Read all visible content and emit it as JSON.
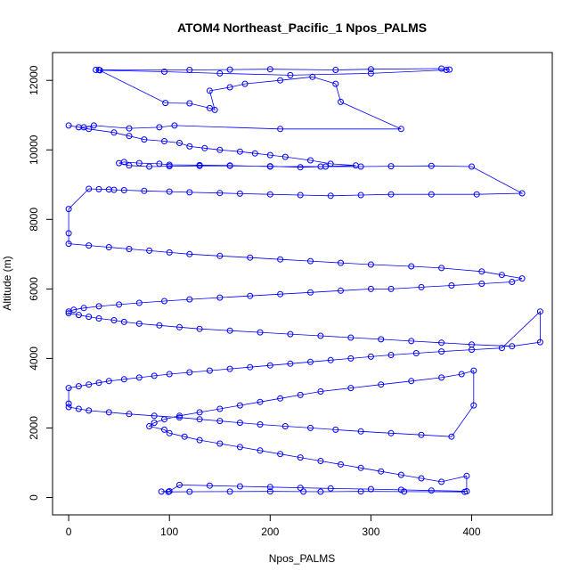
{
  "chart_data": {
    "type": "line",
    "title": "ATOM4 Northeast_Pacific_1 Npos_PALMS",
    "xlabel": "Npos_PALMS",
    "ylabel": "Altitude (m)",
    "xlim": [
      -16,
      480
    ],
    "ylim": [
      -500,
      12800
    ],
    "x_ticks": [
      0,
      100,
      200,
      300,
      400
    ],
    "x_tick_labels": [
      "0",
      "100",
      "200",
      "300",
      "400"
    ],
    "y_ticks": [
      0,
      2000,
      4000,
      6000,
      8000,
      10000,
      12000
    ],
    "y_tick_labels": [
      "0",
      "2000",
      "4000",
      "6000",
      "8000",
      "10000",
      "12000"
    ],
    "grid": false,
    "legend": "none",
    "colors": {
      "series": "#0000ff",
      "axis": "#000000"
    },
    "series": [
      {
        "x": [
          27,
          120,
          160,
          200,
          265,
          300,
          370,
          378,
          375,
          300,
          220,
          150,
          95,
          31,
          30,
          96,
          120,
          140,
          145,
          140,
          160,
          175,
          210,
          242,
          265,
          270,
          330,
          210,
          105,
          90,
          60,
          25,
          15,
          10,
          0,
          20,
          45,
          60,
          75,
          95,
          110,
          120,
          135,
          150,
          170,
          185,
          200,
          215,
          240,
          260,
          285,
          250,
          200,
          160,
          130,
          100,
          90,
          70,
          55,
          50,
          60,
          80,
          100,
          130,
          160,
          200,
          230,
          255,
          290,
          320,
          360,
          400,
          450,
          405,
          360,
          320,
          290,
          260,
          230,
          200,
          170,
          150,
          120,
          100,
          75,
          55,
          45,
          40,
          30,
          20,
          0,
          0,
          0,
          20,
          40,
          60,
          80,
          100,
          120,
          150,
          180,
          210,
          240,
          270,
          300,
          340,
          370,
          410,
          430,
          450,
          440,
          410,
          380,
          350,
          320,
          300,
          270,
          240,
          210,
          180,
          150,
          120,
          95,
          70,
          50,
          30,
          15,
          5,
          0,
          0,
          10,
          20,
          30,
          45,
          55,
          70,
          90,
          110,
          130,
          160,
          190,
          220,
          250,
          280,
          310,
          340,
          370,
          400,
          440,
          468,
          468,
          430,
          400,
          370,
          345,
          320,
          300,
          280,
          260,
          240,
          220,
          200,
          180,
          160,
          140,
          120,
          100,
          85,
          70,
          55,
          40,
          30,
          20,
          10,
          0,
          0,
          0,
          10,
          20,
          40,
          60,
          85,
          110,
          130,
          150,
          170,
          190,
          215,
          240,
          265,
          290,
          320,
          350,
          380,
          402,
          402,
          390,
          370,
          340,
          310,
          280,
          250,
          230,
          210,
          190,
          170,
          150,
          130,
          110,
          95,
          85,
          80,
          95,
          100,
          115,
          130,
          150,
          170,
          190,
          210,
          230,
          250,
          270,
          290,
          310,
          330,
          350,
          370,
          395,
          395,
          360,
          330,
          300,
          260,
          230,
          200,
          170,
          140,
          110,
          100,
          92,
          99,
          120,
          160,
          200,
          233,
          250,
          290,
          333,
          393
        ],
        "y": [
          12300,
          12300,
          12310,
          12320,
          12300,
          12320,
          12340,
          12310,
          12300,
          12200,
          12150,
          12200,
          12250,
          12290,
          12300,
          11350,
          11340,
          11200,
          11150,
          11700,
          11800,
          11900,
          12000,
          12100,
          11900,
          11380,
          10600,
          10600,
          10700,
          10650,
          10620,
          10700,
          10650,
          10650,
          10700,
          10600,
          10500,
          10400,
          10300,
          10250,
          10200,
          10100,
          10050,
          10000,
          9950,
          9900,
          9850,
          9800,
          9700,
          9600,
          9550,
          9520,
          9520,
          9550,
          9560,
          9570,
          9600,
          9620,
          9650,
          9620,
          9550,
          9520,
          9530,
          9540,
          9540,
          9530,
          9500,
          9520,
          9520,
          9530,
          9540,
          9520,
          8750,
          8720,
          8720,
          8720,
          8700,
          8680,
          8700,
          8720,
          8740,
          8760,
          8780,
          8800,
          8820,
          8840,
          8850,
          8860,
          8870,
          8880,
          8300,
          7600,
          7300,
          7250,
          7200,
          7150,
          7100,
          7050,
          7000,
          6950,
          6900,
          6850,
          6800,
          6750,
          6700,
          6650,
          6600,
          6500,
          6400,
          6300,
          6200,
          6150,
          6100,
          6050,
          6000,
          6000,
          5950,
          5900,
          5850,
          5800,
          5750,
          5700,
          5650,
          5600,
          5550,
          5500,
          5450,
          5400,
          5350,
          5300,
          5250,
          5200,
          5150,
          5100,
          5050,
          5000,
          4950,
          4900,
          4850,
          4800,
          4750,
          4700,
          4650,
          4600,
          4550,
          4500,
          4450,
          4400,
          4350,
          4470,
          5350,
          4300,
          4250,
          4200,
          4150,
          4100,
          4050,
          4000,
          3950,
          3900,
          3850,
          3800,
          3750,
          3700,
          3650,
          3600,
          3550,
          3500,
          3450,
          3400,
          3350,
          3300,
          3250,
          3200,
          3150,
          2700,
          2600,
          2550,
          2500,
          2450,
          2400,
          2350,
          2300,
          2250,
          2200,
          2150,
          2100,
          2050,
          2000,
          1950,
          1900,
          1850,
          1800,
          1750,
          2650,
          3650,
          3550,
          3450,
          3350,
          3250,
          3150,
          3050,
          2950,
          2850,
          2750,
          2650,
          2550,
          2450,
          2350,
          2250,
          2150,
          2050,
          1950,
          1850,
          1750,
          1650,
          1550,
          1450,
          1350,
          1250,
          1150,
          1050,
          950,
          850,
          750,
          650,
          550,
          450,
          620,
          180,
          200,
          220,
          240,
          260,
          280,
          300,
          320,
          340,
          360,
          180,
          170,
          160,
          165,
          170,
          175,
          170,
          165,
          175,
          170,
          160
        ]
      }
    ]
  }
}
